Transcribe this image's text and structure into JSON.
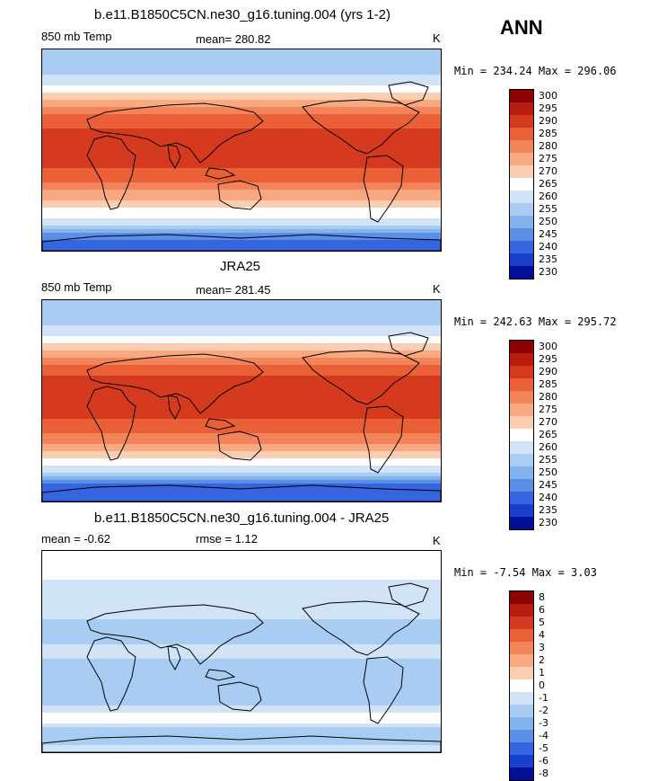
{
  "season_label": "ANN",
  "chart_data": [
    {
      "type": "heatmap",
      "title": "b.e11.B1850C5CN.ne30_g16.tuning.004 (yrs 1-2)",
      "left_label": "850 mb Temp",
      "center_label": "mean= 280.82",
      "units": "K",
      "minmax": "Min = 234.24 Max = 296.06",
      "colorbar_ticks": [
        "300",
        "295",
        "290",
        "285",
        "280",
        "275",
        "270",
        "265",
        "260",
        "255",
        "250",
        "245",
        "240",
        "235",
        "230"
      ],
      "colors": [
        "#8b0000",
        "#b81c0e",
        "#d63a1e",
        "#e95f36",
        "#f3845a",
        "#f8a982",
        "#fbcdb1",
        "#ffffff",
        "#d0e3f7",
        "#a9cdf2",
        "#82b3ec",
        "#5a8fe6",
        "#3566e0",
        "#1a3fca",
        "#000f96"
      ],
      "lat_profile": [
        {
          "lat": 90,
          "v": 255
        },
        {
          "lat": 70,
          "v": 258
        },
        {
          "lat": 60,
          "v": 264
        },
        {
          "lat": 50,
          "v": 270
        },
        {
          "lat": 40,
          "v": 278
        },
        {
          "lat": 30,
          "v": 286
        },
        {
          "lat": 15,
          "v": 292
        },
        {
          "lat": 0,
          "v": 293
        },
        {
          "lat": -15,
          "v": 291
        },
        {
          "lat": -30,
          "v": 284
        },
        {
          "lat": -45,
          "v": 274
        },
        {
          "lat": -55,
          "v": 268
        },
        {
          "lat": -65,
          "v": 262
        },
        {
          "lat": -75,
          "v": 248
        },
        {
          "lat": -90,
          "v": 240
        }
      ]
    },
    {
      "type": "heatmap",
      "title": "JRA25",
      "left_label": "850 mb Temp",
      "center_label": "mean= 281.45",
      "units": "K",
      "minmax": "Min = 242.63 Max = 295.72",
      "colorbar_ticks": [
        "300",
        "295",
        "290",
        "285",
        "280",
        "275",
        "270",
        "265",
        "260",
        "255",
        "250",
        "245",
        "240",
        "235",
        "230"
      ],
      "colors": [
        "#8b0000",
        "#b81c0e",
        "#d63a1e",
        "#e95f36",
        "#f3845a",
        "#f8a982",
        "#fbcdb1",
        "#ffffff",
        "#d0e3f7",
        "#a9cdf2",
        "#82b3ec",
        "#5a8fe6",
        "#3566e0",
        "#1a3fca",
        "#000f96"
      ],
      "lat_profile": [
        {
          "lat": 90,
          "v": 255
        },
        {
          "lat": 70,
          "v": 259
        },
        {
          "lat": 60,
          "v": 264
        },
        {
          "lat": 50,
          "v": 271
        },
        {
          "lat": 40,
          "v": 279
        },
        {
          "lat": 30,
          "v": 287
        },
        {
          "lat": 15,
          "v": 292
        },
        {
          "lat": 0,
          "v": 293
        },
        {
          "lat": -15,
          "v": 291
        },
        {
          "lat": -30,
          "v": 285
        },
        {
          "lat": -45,
          "v": 275
        },
        {
          "lat": -55,
          "v": 268
        },
        {
          "lat": -65,
          "v": 258
        },
        {
          "lat": -75,
          "v": 245
        },
        {
          "lat": -90,
          "v": 242
        }
      ]
    },
    {
      "type": "heatmap",
      "title": "b.e11.B1850C5CN.ne30_g16.tuning.004 - JRA25",
      "left_label": "mean =   -0.62",
      "center_label": "rmse =    1.12",
      "units": "K",
      "minmax": "Min =  -7.54 Max =    3.03",
      "colorbar_ticks": [
        "8",
        "6",
        "5",
        "4",
        "3",
        "2",
        "1",
        "0",
        "-1",
        "-2",
        "-3",
        "-4",
        "-5",
        "-6",
        "-8"
      ],
      "colors": [
        "#8b0000",
        "#b81c0e",
        "#d63a1e",
        "#e95f36",
        "#f3845a",
        "#f8a982",
        "#fbcdb1",
        "#ffffff",
        "#d0e3f7",
        "#a9cdf2",
        "#82b3ec",
        "#5a8fe6",
        "#3566e0",
        "#1a3fca",
        "#000f96"
      ],
      "lat_profile": [
        {
          "lat": 90,
          "v": 1
        },
        {
          "lat": 70,
          "v": 0.5
        },
        {
          "lat": 50,
          "v": -1
        },
        {
          "lat": 30,
          "v": -1
        },
        {
          "lat": 15,
          "v": -1.5
        },
        {
          "lat": 0,
          "v": -0.5
        },
        {
          "lat": -15,
          "v": -1.5
        },
        {
          "lat": -30,
          "v": -1
        },
        {
          "lat": -45,
          "v": -1.5
        },
        {
          "lat": -60,
          "v": 0.5
        },
        {
          "lat": -75,
          "v": -2
        },
        {
          "lat": -90,
          "v": 0
        }
      ]
    }
  ]
}
